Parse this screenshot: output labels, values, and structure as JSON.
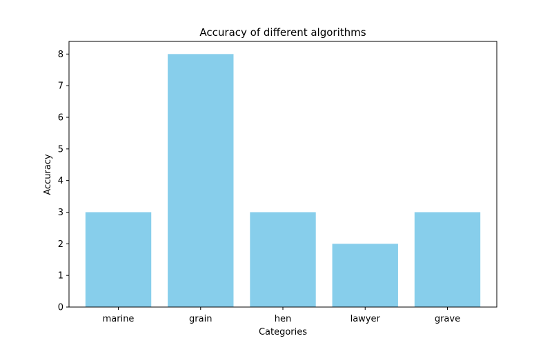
{
  "chart_data": {
    "type": "bar",
    "title": "Accuracy of different algorithms",
    "xlabel": "Categories",
    "ylabel": "Accuracy",
    "categories": [
      "marine",
      "grain",
      "hen",
      "lawyer",
      "grave"
    ],
    "values": [
      3,
      8,
      3,
      2,
      3
    ],
    "ylim": [
      0,
      8.4
    ],
    "yticks": [
      0,
      1,
      2,
      3,
      4,
      5,
      6,
      7,
      8
    ],
    "bar_color": "#87CEEB",
    "grid": false,
    "legend": "none"
  }
}
